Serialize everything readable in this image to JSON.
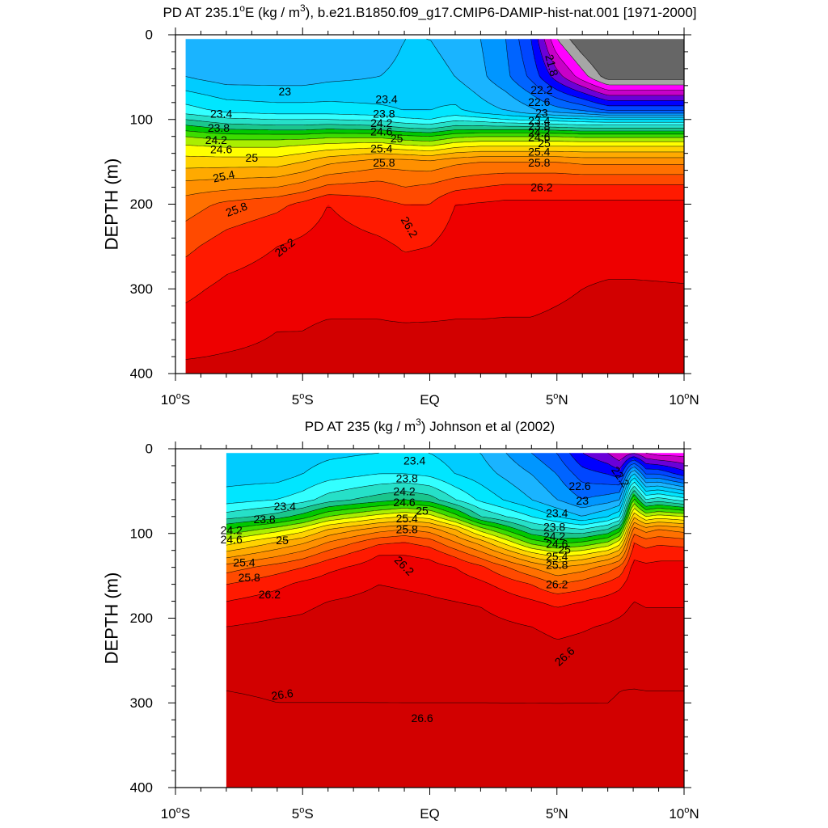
{
  "colors": {
    "scale": [
      "#666666",
      "#a6a6a6",
      "#ff00ff",
      "#c800c8",
      "#6a00d8",
      "#0000ff",
      "#0046ff",
      "#0064ff",
      "#0096ff",
      "#1ab4ff",
      "#00ccff",
      "#00e6ff",
      "#33ffff",
      "#26e0c8",
      "#1ac68c",
      "#00c800",
      "#3cdc00",
      "#aaee00",
      "#ffff00",
      "#ffd200",
      "#ffaa00",
      "#ff9000",
      "#ff7000",
      "#ff4a00",
      "#ff1a00",
      "#ee0000",
      "#d20000"
    ],
    "contour_line": "#000000"
  },
  "chart_data": [
    {
      "type": "contour",
      "title_parts": [
        "PD AT 235.1",
        "o",
        "E (kg / m",
        "3",
        "), b.e21.B1850.f09_g17.CMIP6-DAMIP-hist-nat.001 [1971-2000]"
      ],
      "xlabel": "",
      "ylabel": "DEPTH (m)",
      "x_ticks": [
        {
          "v": -10,
          "a": "10",
          "s": "o",
          "b": "S"
        },
        {
          "v": -5,
          "a": "5",
          "s": "o",
          "b": "S"
        },
        {
          "v": 0,
          "a": "EQ",
          "s": "",
          "b": ""
        },
        {
          "v": 5,
          "a": "5",
          "s": "o",
          "b": "N"
        },
        {
          "v": 10,
          "a": "10",
          "s": "o",
          "b": "N"
        }
      ],
      "y_ticks": [
        0,
        100,
        200,
        300,
        400
      ],
      "xlim": [
        -10,
        10
      ],
      "ylim": [
        0,
        400
      ],
      "data_xlim": [
        -9.6,
        10
      ],
      "data_ylim": [
        5,
        400
      ],
      "levels_start": 21.4,
      "levels_step": 0.2,
      "levels_count": 27,
      "grid": false,
      "lon": [
        -10,
        -9.6,
        -8,
        -6,
        -5,
        -4,
        -2,
        -1,
        0,
        1,
        2,
        3,
        4,
        5,
        6,
        7,
        8,
        10
      ],
      "depth": [
        5,
        50,
        90,
        100,
        110,
        120,
        130,
        150,
        180,
        200,
        250,
        300,
        350,
        400
      ],
      "columns": [
        [
          23.0,
          23.2,
          23.7,
          24.0,
          24.3,
          24.6,
          24.8,
          25.1,
          25.5,
          25.7,
          25.95,
          26.15,
          26.3,
          26.45
        ],
        [
          23.0,
          23.2,
          23.7,
          24.0,
          24.3,
          24.6,
          24.8,
          25.1,
          25.5,
          25.7,
          25.95,
          26.15,
          26.3,
          26.45
        ],
        [
          23.0,
          23.1,
          23.55,
          23.85,
          24.15,
          24.5,
          24.75,
          25.1,
          25.55,
          25.85,
          26.1,
          26.25,
          26.35,
          26.45
        ],
        [
          23.0,
          23.1,
          23.5,
          23.8,
          24.1,
          24.5,
          24.75,
          25.1,
          25.6,
          25.95,
          26.2,
          26.3,
          26.4,
          26.45
        ],
        [
          23.0,
          23.1,
          23.5,
          23.8,
          24.1,
          24.5,
          24.8,
          25.2,
          25.7,
          26.05,
          26.25,
          26.35,
          26.4,
          26.45
        ],
        [
          23.0,
          23.15,
          23.5,
          23.8,
          24.15,
          24.55,
          24.85,
          25.35,
          25.85,
          26.2,
          26.3,
          26.35,
          26.42,
          26.45
        ],
        [
          23.1,
          23.2,
          23.45,
          23.75,
          24.1,
          24.55,
          24.9,
          25.5,
          25.9,
          26.05,
          26.25,
          26.35,
          26.42,
          26.46
        ],
        [
          23.2,
          23.25,
          23.4,
          23.65,
          24.0,
          24.45,
          24.8,
          25.5,
          25.8,
          26.0,
          26.18,
          26.32,
          26.42,
          26.46
        ],
        [
          23.2,
          23.3,
          23.4,
          23.6,
          23.95,
          24.4,
          24.75,
          25.45,
          25.85,
          26.0,
          26.2,
          26.33,
          26.42,
          26.46
        ],
        [
          23.1,
          23.2,
          23.45,
          23.75,
          24.1,
          24.55,
          24.9,
          25.55,
          25.95,
          26.2,
          26.3,
          26.35,
          26.42,
          26.46
        ],
        [
          23.0,
          23.05,
          23.3,
          23.7,
          24.1,
          24.6,
          24.95,
          25.6,
          26.0,
          26.22,
          26.3,
          26.35,
          26.42,
          26.46
        ],
        [
          22.8,
          22.85,
          23.2,
          23.6,
          24.1,
          24.6,
          24.95,
          25.6,
          26.05,
          26.25,
          26.32,
          26.36,
          26.42,
          26.46
        ],
        [
          22.4,
          22.55,
          23.05,
          23.55,
          24.1,
          24.6,
          24.95,
          25.6,
          26.05,
          26.25,
          26.32,
          26.36,
          26.42,
          26.46
        ],
        [
          21.6,
          22.1,
          22.9,
          23.5,
          24.05,
          24.6,
          24.95,
          25.6,
          26.05,
          26.25,
          26.33,
          26.38,
          26.43,
          26.46
        ],
        [
          21.2,
          21.7,
          22.8,
          23.45,
          24.0,
          24.55,
          24.95,
          25.55,
          26.05,
          26.25,
          26.33,
          26.4,
          26.44,
          26.46
        ],
        [
          20.9,
          21.3,
          22.6,
          23.4,
          24.0,
          24.55,
          24.95,
          25.55,
          26.05,
          26.25,
          26.33,
          26.42,
          26.45,
          26.46
        ],
        [
          20.8,
          21.3,
          22.6,
          23.4,
          24.0,
          24.55,
          24.95,
          25.55,
          26.05,
          26.25,
          26.33,
          26.42,
          26.45,
          26.46
        ],
        [
          20.8,
          21.3,
          22.6,
          23.4,
          24.0,
          24.55,
          24.95,
          25.55,
          26.05,
          26.25,
          26.33,
          26.41,
          26.44,
          26.46
        ]
      ],
      "line_labels": [
        {
          "text": "23",
          "x": -5.7,
          "y": 67,
          "rot": 0
        },
        {
          "text": "23.4",
          "x": -8.2,
          "y": 93,
          "rot": 0
        },
        {
          "text": "23.8",
          "x": -8.3,
          "y": 110,
          "rot": 0
        },
        {
          "text": "24.2",
          "x": -8.4,
          "y": 124,
          "rot": 0
        },
        {
          "text": "24.6",
          "x": -8.2,
          "y": 135,
          "rot": 0
        },
        {
          "text": "25",
          "x": -7.0,
          "y": 145,
          "rot": 0
        },
        {
          "text": "25.4",
          "x": -8.1,
          "y": 167,
          "rot": -12
        },
        {
          "text": "25.8",
          "x": -7.6,
          "y": 206,
          "rot": -20
        },
        {
          "text": "26.2",
          "x": -5.7,
          "y": 251,
          "rot": -38
        },
        {
          "text": "23.4",
          "x": -1.7,
          "y": 76,
          "rot": 0
        },
        {
          "text": "23.8",
          "x": -1.8,
          "y": 93,
          "rot": 0
        },
        {
          "text": "24.2",
          "x": -1.9,
          "y": 104,
          "rot": 0
        },
        {
          "text": "24.6",
          "x": -1.9,
          "y": 114,
          "rot": 0
        },
        {
          "text": "25",
          "x": -1.3,
          "y": 122,
          "rot": 0
        },
        {
          "text": "25.4",
          "x": -1.9,
          "y": 134,
          "rot": 0
        },
        {
          "text": "25.8",
          "x": -1.8,
          "y": 151,
          "rot": 0
        },
        {
          "text": "26.2",
          "x": -0.8,
          "y": 227,
          "rot": 60
        },
        {
          "text": "21.8",
          "x": 4.8,
          "y": 36,
          "rot": 75
        },
        {
          "text": "22.2",
          "x": 4.4,
          "y": 65,
          "rot": 0
        },
        {
          "text": "22.6",
          "x": 4.3,
          "y": 79,
          "rot": 0
        },
        {
          "text": "23",
          "x": 4.4,
          "y": 92,
          "rot": 0
        },
        {
          "text": "23.4",
          "x": 4.3,
          "y": 101,
          "rot": 0
        },
        {
          "text": "23.8",
          "x": 4.3,
          "y": 108,
          "rot": 0
        },
        {
          "text": "24.2",
          "x": 4.3,
          "y": 115,
          "rot": 0
        },
        {
          "text": "24.6",
          "x": 4.3,
          "y": 121,
          "rot": 0
        },
        {
          "text": "25",
          "x": 4.5,
          "y": 128,
          "rot": 0
        },
        {
          "text": "25.4",
          "x": 4.3,
          "y": 138,
          "rot": 0
        },
        {
          "text": "25.8",
          "x": 4.3,
          "y": 151,
          "rot": 0
        },
        {
          "text": "26.2",
          "x": 4.4,
          "y": 180,
          "rot": 0
        }
      ]
    },
    {
      "type": "contour",
      "title_parts": [
        "PD AT 235 (kg / m",
        "3",
        ") Johnson et al (2002)"
      ],
      "xlabel": "",
      "ylabel": "DEPTH (m)",
      "x_ticks": [
        {
          "v": -10,
          "a": "10",
          "s": "o",
          "b": "S"
        },
        {
          "v": -5,
          "a": "5",
          "s": "o",
          "b": "S"
        },
        {
          "v": 0,
          "a": "EQ",
          "s": "",
          "b": ""
        },
        {
          "v": 5,
          "a": "5",
          "s": "o",
          "b": "N"
        },
        {
          "v": 10,
          "a": "10",
          "s": "o",
          "b": "N"
        }
      ],
      "y_ticks": [
        0,
        100,
        200,
        300,
        400
      ],
      "xlim": [
        -10,
        10
      ],
      "ylim": [
        0,
        400
      ],
      "data_xlim": [
        -8,
        10
      ],
      "data_ylim": [
        5,
        400
      ],
      "levels_start": 21.4,
      "levels_step": 0.2,
      "levels_count": 27,
      "grid": false,
      "lon": [
        -8,
        -6,
        -5,
        -4,
        -2,
        -1,
        0,
        1,
        2,
        4,
        5,
        6,
        7,
        7.5,
        8,
        8.5,
        9,
        10
      ],
      "depth": [
        5,
        30,
        60,
        80,
        95,
        110,
        125,
        140,
        160,
        180,
        210,
        250,
        300,
        350,
        400
      ],
      "columns": [
        [
          23.2,
          23.3,
          23.5,
          23.9,
          24.4,
          24.9,
          25.3,
          25.7,
          26.0,
          26.2,
          26.4,
          26.55,
          26.62,
          26.72,
          26.82
        ],
        [
          23.2,
          23.3,
          23.6,
          24.1,
          24.7,
          25.2,
          25.55,
          25.9,
          26.15,
          26.3,
          26.45,
          26.55,
          26.6,
          26.68,
          26.78
        ],
        [
          23.3,
          23.4,
          23.7,
          24.3,
          24.9,
          25.35,
          25.7,
          26.0,
          26.25,
          26.35,
          26.45,
          26.55,
          26.6,
          26.68,
          26.78
        ],
        [
          23.35,
          23.5,
          23.9,
          24.6,
          25.2,
          25.6,
          25.9,
          26.15,
          26.3,
          26.4,
          26.5,
          26.55,
          26.6,
          26.68,
          26.78
        ],
        [
          23.4,
          23.6,
          24.1,
          24.9,
          25.5,
          25.95,
          26.2,
          26.3,
          26.4,
          26.45,
          26.52,
          26.56,
          26.6,
          26.66,
          26.76
        ],
        [
          23.4,
          23.6,
          24.2,
          25.0,
          25.6,
          26.0,
          26.2,
          26.3,
          26.38,
          26.44,
          26.5,
          26.55,
          26.6,
          26.66,
          26.75
        ],
        [
          23.4,
          23.55,
          24.1,
          24.9,
          25.5,
          25.9,
          26.15,
          26.28,
          26.36,
          26.42,
          26.48,
          26.55,
          26.6,
          26.66,
          26.74
        ],
        [
          23.3,
          23.4,
          23.8,
          24.5,
          25.2,
          25.6,
          25.95,
          26.2,
          26.32,
          26.4,
          26.48,
          26.55,
          26.6,
          26.66,
          26.74
        ],
        [
          23.2,
          23.3,
          23.55,
          24.0,
          24.7,
          25.3,
          25.7,
          26.05,
          26.25,
          26.38,
          26.47,
          26.55,
          26.6,
          26.66,
          26.74
        ],
        [
          22.8,
          23.0,
          23.2,
          23.6,
          24.0,
          24.5,
          25.1,
          25.6,
          26.0,
          26.22,
          26.4,
          26.52,
          26.6,
          26.66,
          26.74
        ],
        [
          22.6,
          22.8,
          23.0,
          23.4,
          23.9,
          24.3,
          24.9,
          25.4,
          25.8,
          26.15,
          26.35,
          26.48,
          26.6,
          26.66,
          26.74
        ],
        [
          22.2,
          22.5,
          22.8,
          23.2,
          23.8,
          24.4,
          25.0,
          25.5,
          25.9,
          26.2,
          26.38,
          26.5,
          26.6,
          26.66,
          26.74
        ],
        [
          22.0,
          22.4,
          22.9,
          23.4,
          24.0,
          24.6,
          25.2,
          25.7,
          26.05,
          26.28,
          26.42,
          26.52,
          26.6,
          26.66,
          26.74
        ],
        [
          21.8,
          22.3,
          23.0,
          23.6,
          24.3,
          24.9,
          25.4,
          25.85,
          26.15,
          26.32,
          26.45,
          26.55,
          26.62,
          26.68,
          26.75
        ],
        [
          22.0,
          23.3,
          24.5,
          25.2,
          25.7,
          26.0,
          26.15,
          26.28,
          26.35,
          26.4,
          26.48,
          26.56,
          26.62,
          26.68,
          26.76
        ],
        [
          21.8,
          22.6,
          23.8,
          24.8,
          25.5,
          25.9,
          26.1,
          26.25,
          26.33,
          26.38,
          26.46,
          26.55,
          26.62,
          26.68,
          26.76
        ],
        [
          21.7,
          22.6,
          23.9,
          24.9,
          25.6,
          25.95,
          26.15,
          26.25,
          26.33,
          26.38,
          26.46,
          26.55,
          26.62,
          26.68,
          26.76
        ],
        [
          21.7,
          22.3,
          23.7,
          24.8,
          25.5,
          25.9,
          26.15,
          26.25,
          26.33,
          26.38,
          26.46,
          26.55,
          26.62,
          26.68,
          26.76
        ]
      ],
      "line_labels": [
        {
          "text": "23.4",
          "x": -0.6,
          "y": 14,
          "rot": 0
        },
        {
          "text": "23.8",
          "x": -0.9,
          "y": 35,
          "rot": 0
        },
        {
          "text": "24.2",
          "x": -1.0,
          "y": 50,
          "rot": 0
        },
        {
          "text": "24.6",
          "x": -1.0,
          "y": 63,
          "rot": 0
        },
        {
          "text": "25",
          "x": -0.3,
          "y": 73,
          "rot": 0
        },
        {
          "text": "25.4",
          "x": -0.9,
          "y": 82,
          "rot": 0
        },
        {
          "text": "25.8",
          "x": -0.9,
          "y": 95,
          "rot": 0
        },
        {
          "text": "26.2",
          "x": -1.0,
          "y": 138,
          "rot": 45
        },
        {
          "text": "23.4",
          "x": -5.7,
          "y": 68,
          "rot": 0
        },
        {
          "text": "23.8",
          "x": -6.5,
          "y": 83,
          "rot": 0
        },
        {
          "text": "24.2",
          "x": -7.8,
          "y": 96,
          "rot": 0
        },
        {
          "text": "24.6",
          "x": -7.8,
          "y": 107,
          "rot": 0
        },
        {
          "text": "25",
          "x": -5.8,
          "y": 108,
          "rot": 0
        },
        {
          "text": "25.4",
          "x": -7.3,
          "y": 134,
          "rot": 0
        },
        {
          "text": "25.8",
          "x": -7.1,
          "y": 152,
          "rot": 0
        },
        {
          "text": "26.2",
          "x": -6.3,
          "y": 172,
          "rot": 0
        },
        {
          "text": "22.2",
          "x": 7.5,
          "y": 33,
          "rot": 55
        },
        {
          "text": "22.6",
          "x": 5.9,
          "y": 44,
          "rot": 0
        },
        {
          "text": "23",
          "x": 6.0,
          "y": 61,
          "rot": 0
        },
        {
          "text": "23.4",
          "x": 5.0,
          "y": 76,
          "rot": 0
        },
        {
          "text": "23.8",
          "x": 4.9,
          "y": 92,
          "rot": 0
        },
        {
          "text": "24.2",
          "x": 4.9,
          "y": 103,
          "rot": 0
        },
        {
          "text": "24.6",
          "x": 5.0,
          "y": 112,
          "rot": 0
        },
        {
          "text": "25",
          "x": 5.3,
          "y": 119,
          "rot": 0
        },
        {
          "text": "25.4",
          "x": 5.0,
          "y": 127,
          "rot": 0
        },
        {
          "text": "25.8",
          "x": 5.0,
          "y": 137,
          "rot": 0
        },
        {
          "text": "26.2",
          "x": 5.0,
          "y": 160,
          "rot": 0
        },
        {
          "text": "26.6",
          "x": 5.3,
          "y": 245,
          "rot": -42
        },
        {
          "text": "26.6",
          "x": -5.8,
          "y": 290,
          "rot": -8
        },
        {
          "text": "26.6",
          "x": -0.3,
          "y": 318,
          "rot": 0
        }
      ]
    }
  ]
}
